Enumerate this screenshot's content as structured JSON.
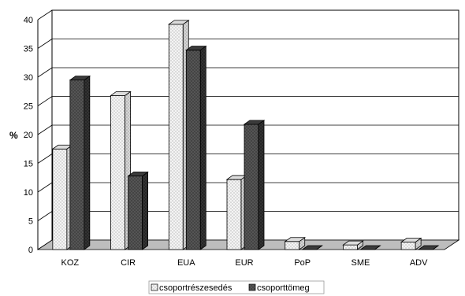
{
  "chart_data": {
    "type": "bar",
    "style": "3d-clustered-column",
    "categories": [
      "KOZ",
      "CIR",
      "EUA",
      "EUR",
      "PoP",
      "SME",
      "ADV"
    ],
    "series": [
      {
        "name": "csoportrészesedés",
        "values": [
          17.5,
          26.8,
          39.2,
          12.2,
          1.4,
          0.8,
          1.3
        ],
        "pattern": "light-dotted",
        "color": "#ececec"
      },
      {
        "name": "csoporttömeg",
        "values": [
          29.5,
          12.8,
          34.7,
          21.8,
          0.0,
          0.0,
          0.0
        ],
        "pattern": "dark-dotted",
        "color": "#4a4a4a"
      }
    ],
    "ylabel": "%",
    "xlabel": "",
    "title": "",
    "ylim": [
      0,
      40
    ],
    "yticks": [
      0,
      5,
      10,
      15,
      20,
      25,
      30,
      35,
      40
    ],
    "grid": true,
    "legend": "bottom-center"
  }
}
